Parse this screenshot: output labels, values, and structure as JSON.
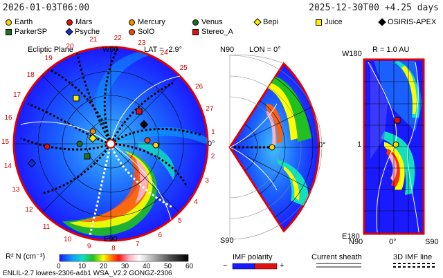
{
  "header": {
    "left_time": "2026-01-03T06:00",
    "right_time": "2025-12-30T00 +4.25 days"
  },
  "legend": [
    {
      "name": "Earth",
      "shape": "circle",
      "color": "#ffd700"
    },
    {
      "name": "Mars",
      "shape": "circle",
      "color": "#e01010"
    },
    {
      "name": "Mercury",
      "shape": "circle",
      "color": "#f08c00"
    },
    {
      "name": "Venus",
      "shape": "circle",
      "color": "#207020"
    },
    {
      "name": "Bepi",
      "shape": "diamond",
      "color": "#ffee00"
    },
    {
      "name": "Juice",
      "shape": "square",
      "color": "#ffee00"
    },
    {
      "name": "OSIRIS-APEX",
      "shape": "diamond",
      "color": "#000000"
    },
    {
      "name": "ParkerSP",
      "shape": "square",
      "color": "#207020"
    },
    {
      "name": "Psyche",
      "shape": "diamond",
      "color": "#1030d0"
    },
    {
      "name": "SolO",
      "shape": "circle",
      "color": "#e05010"
    },
    {
      "name": "Stereo_A",
      "shape": "square",
      "color": "#e01010"
    }
  ],
  "ecliptic": {
    "title": "Ecliptic Plane",
    "lat": "LAT = -2.9°",
    "w90": "W90",
    "e90": "E90",
    "zero": "0°",
    "rim_numbers": [
      "1",
      "2",
      "3",
      "4",
      "5",
      "6",
      "7",
      "8",
      "9",
      "10",
      "11",
      "12",
      "13",
      "14",
      "15",
      "16",
      "17",
      "18",
      "19",
      "20",
      "21",
      "22",
      "23",
      "24",
      "25",
      "26",
      "27"
    ]
  },
  "meridional": {
    "n90": "N90",
    "s90": "S90",
    "lon": "LON = 0°",
    "zero": "0°"
  },
  "latlon": {
    "r": "R = 1.0 AU",
    "w180": "W180",
    "e180": "E180",
    "one": "1",
    "n90": "N90",
    "zero": "0°",
    "s90": "S90"
  },
  "colorbar": {
    "label": "R² N (cm⁻³)",
    "ticks": [
      "0",
      "10",
      "20",
      "30",
      "40",
      "50",
      "60"
    ],
    "stops": [
      "#1a1aff",
      "#0aa0ff",
      "#10e0c0",
      "#20c020",
      "#ffff00",
      "#ff8000",
      "#ff1010",
      "#ffb0c0",
      "#ffffff",
      "#a0a0a0",
      "#404040",
      "#000000"
    ]
  },
  "imf_polarity": {
    "label": "IMF polarity",
    "minus": "−",
    "plus": "+"
  },
  "current_sheath": {
    "label": "Current sheath"
  },
  "imf_3d": {
    "label": "3D IMF line"
  },
  "footer": {
    "text": "ENLIL-2.7 lowres-2306-a4b1 WSA_V2.2 GONGZ-2306"
  }
}
